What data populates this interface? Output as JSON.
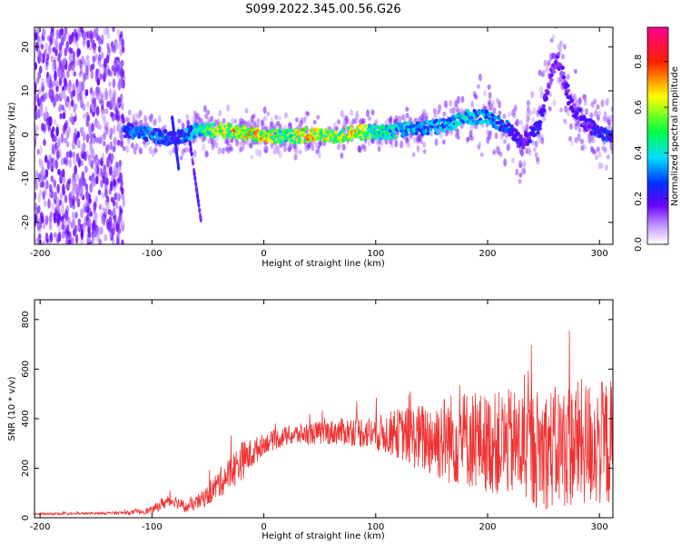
{
  "title": "S099.2022.345.00.56.G26",
  "chart_data": [
    {
      "type": "heatmap",
      "title": "",
      "xlabel": "Height of straight line (km)",
      "ylabel": "Frequency (Hz)",
      "xlim": [
        -205,
        312
      ],
      "ylim": [
        -25,
        24.5
      ],
      "xticks": [
        -200,
        -100,
        0,
        100,
        200,
        300
      ],
      "yticks": [
        -20,
        -10,
        0,
        10,
        20
      ],
      "colorbar": {
        "label": "Normalized spectral amplitude",
        "ticks": [
          0.0,
          0.2,
          0.4,
          0.6,
          0.8
        ],
        "range": [
          0,
          0.95
        ],
        "colormap": "hsv-like (white, violet, blue, cyan, green, yellow, red, magenta)"
      },
      "ridge": {
        "x": [
          -125,
          -100,
          -80,
          -60,
          -40,
          -20,
          0,
          20,
          40,
          60,
          80,
          100,
          120,
          140,
          160,
          180,
          200,
          215,
          230,
          245,
          255,
          262,
          275,
          290,
          305,
          312
        ],
        "freq_hz": [
          1,
          0,
          -1,
          1,
          1,
          0.5,
          0,
          -0.5,
          0,
          -0.5,
          0.5,
          0.5,
          1,
          1.5,
          2,
          4,
          4,
          2,
          -2,
          2,
          12,
          18,
          6,
          2,
          0,
          0
        ],
        "peak_amplitude": [
          0.35,
          0.4,
          0.3,
          0.5,
          0.75,
          0.85,
          0.8,
          0.6,
          0.85,
          0.7,
          0.85,
          0.55,
          0.5,
          0.45,
          0.45,
          0.5,
          0.45,
          0.35,
          0.25,
          0.3,
          0.2,
          0.2,
          0.25,
          0.25,
          0.35,
          0.3
        ]
      },
      "noise_region_x": [
        -205,
        -125
      ]
    },
    {
      "type": "line",
      "title": "",
      "xlabel": "Height of straight line (km)",
      "ylabel": "SNR (10 * v/v)",
      "xlim": [
        -205,
        312
      ],
      "ylim": [
        0,
        880
      ],
      "xticks": [
        -200,
        -100,
        0,
        100,
        200,
        300
      ],
      "yticks": [
        0,
        200,
        400,
        600,
        800
      ],
      "color": "#f03232",
      "envelope": {
        "x": [
          -205,
          -180,
          -150,
          -120,
          -100,
          -90,
          -80,
          -70,
          -60,
          -50,
          -40,
          -30,
          -20,
          -10,
          0,
          20,
          40,
          60,
          80,
          100,
          120,
          140,
          160,
          180,
          200,
          220,
          240,
          260,
          280,
          300,
          312
        ],
        "mean": [
          15,
          15,
          18,
          20,
          30,
          60,
          70,
          40,
          60,
          90,
          140,
          180,
          230,
          260,
          300,
          330,
          340,
          345,
          350,
          340,
          340,
          320,
          320,
          320,
          300,
          300,
          280,
          280,
          300,
          300,
          300
        ],
        "spread": [
          5,
          5,
          5,
          8,
          15,
          25,
          25,
          20,
          30,
          40,
          60,
          70,
          80,
          60,
          40,
          40,
          45,
          50,
          60,
          70,
          100,
          140,
          180,
          200,
          200,
          220,
          240,
          250,
          260,
          260,
          260
        ]
      }
    }
  ]
}
